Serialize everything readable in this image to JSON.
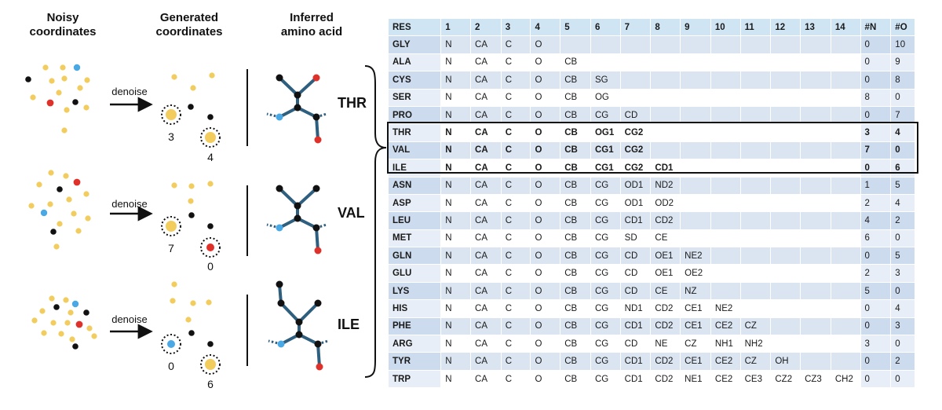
{
  "headers": {
    "noisy": "Noisy\ncoordinates",
    "generated": "Generated\ncoordinates",
    "inferred": "Inferred\namino acid"
  },
  "arrow_label": "denoise",
  "examples": [
    {
      "amino_acid": "THR",
      "n_count": "3",
      "o_count": "4"
    },
    {
      "amino_acid": "VAL",
      "n_count": "7",
      "o_count": "0"
    },
    {
      "amino_acid": "ILE",
      "n_count": "0",
      "o_count": "6"
    }
  ],
  "colors": {
    "yellow": "#f2cc5d",
    "black": "#111111",
    "red": "#e0302a",
    "blue": "#4aa9e4",
    "bond": "#2f5f7f",
    "row_shade": "#dbe5f1",
    "header": "#cfe5f4"
  },
  "table": {
    "header": [
      "RES",
      "1",
      "2",
      "3",
      "4",
      "5",
      "6",
      "7",
      "8",
      "9",
      "10",
      "11",
      "12",
      "13",
      "14",
      "#N",
      "#O"
    ],
    "highlight_rows": [
      "THR",
      "VAL",
      "ILE"
    ],
    "rows": [
      [
        "GLY",
        "N",
        "CA",
        "C",
        "O",
        "",
        "",
        "",
        "",
        "",
        "",
        "",
        "",
        "",
        "",
        "0",
        "10"
      ],
      [
        "ALA",
        "N",
        "CA",
        "C",
        "O",
        "CB",
        "",
        "",
        "",
        "",
        "",
        "",
        "",
        "",
        "",
        "0",
        "9"
      ],
      [
        "CYS",
        "N",
        "CA",
        "C",
        "O",
        "CB",
        "SG",
        "",
        "",
        "",
        "",
        "",
        "",
        "",
        "",
        "0",
        "8"
      ],
      [
        "SER",
        "N",
        "CA",
        "C",
        "O",
        "CB",
        "OG",
        "",
        "",
        "",
        "",
        "",
        "",
        "",
        "",
        "8",
        "0"
      ],
      [
        "PRO",
        "N",
        "CA",
        "C",
        "O",
        "CB",
        "CG",
        "CD",
        "",
        "",
        "",
        "",
        "",
        "",
        "",
        "0",
        "7"
      ],
      [
        "THR",
        "N",
        "CA",
        "C",
        "O",
        "CB",
        "OG1",
        "CG2",
        "",
        "",
        "",
        "",
        "",
        "",
        "",
        "3",
        "4"
      ],
      [
        "VAL",
        "N",
        "CA",
        "C",
        "O",
        "CB",
        "CG1",
        "CG2",
        "",
        "",
        "",
        "",
        "",
        "",
        "",
        "7",
        "0"
      ],
      [
        "ILE",
        "N",
        "CA",
        "C",
        "O",
        "CB",
        "CG1",
        "CG2",
        "CD1",
        "",
        "",
        "",
        "",
        "",
        "",
        "0",
        "6"
      ],
      [
        "ASN",
        "N",
        "CA",
        "C",
        "O",
        "CB",
        "CG",
        "OD1",
        "ND2",
        "",
        "",
        "",
        "",
        "",
        "",
        "1",
        "5"
      ],
      [
        "ASP",
        "N",
        "CA",
        "C",
        "O",
        "CB",
        "CG",
        "OD1",
        "OD2",
        "",
        "",
        "",
        "",
        "",
        "",
        "2",
        "4"
      ],
      [
        "LEU",
        "N",
        "CA",
        "C",
        "O",
        "CB",
        "CG",
        "CD1",
        "CD2",
        "",
        "",
        "",
        "",
        "",
        "",
        "4",
        "2"
      ],
      [
        "MET",
        "N",
        "CA",
        "C",
        "O",
        "CB",
        "CG",
        "SD",
        "CE",
        "",
        "",
        "",
        "",
        "",
        "",
        "6",
        "0"
      ],
      [
        "GLN",
        "N",
        "CA",
        "C",
        "O",
        "CB",
        "CG",
        "CD",
        "OE1",
        "NE2",
        "",
        "",
        "",
        "",
        "",
        "0",
        "5"
      ],
      [
        "GLU",
        "N",
        "CA",
        "C",
        "O",
        "CB",
        "CG",
        "CD",
        "OE1",
        "OE2",
        "",
        "",
        "",
        "",
        "",
        "2",
        "3"
      ],
      [
        "LYS",
        "N",
        "CA",
        "C",
        "O",
        "CB",
        "CG",
        "CD",
        "CE",
        "NZ",
        "",
        "",
        "",
        "",
        "",
        "5",
        "0"
      ],
      [
        "HIS",
        "N",
        "CA",
        "C",
        "O",
        "CB",
        "CG",
        "ND1",
        "CD2",
        "CE1",
        "NE2",
        "",
        "",
        "",
        "",
        "0",
        "4"
      ],
      [
        "PHE",
        "N",
        "CA",
        "C",
        "O",
        "CB",
        "CG",
        "CD1",
        "CD2",
        "CE1",
        "CE2",
        "CZ",
        "",
        "",
        "",
        "0",
        "3"
      ],
      [
        "ARG",
        "N",
        "CA",
        "C",
        "O",
        "CB",
        "CG",
        "CD",
        "NE",
        "CZ",
        "NH1",
        "NH2",
        "",
        "",
        "",
        "3",
        "0"
      ],
      [
        "TYR",
        "N",
        "CA",
        "C",
        "O",
        "CB",
        "CG",
        "CD1",
        "CD2",
        "CE1",
        "CE2",
        "CZ",
        "OH",
        "",
        "",
        "0",
        "2"
      ],
      [
        "TRP",
        "N",
        "CA",
        "C",
        "O",
        "CB",
        "CG",
        "CD1",
        "CD2",
        "NE1",
        "CE2",
        "CE3",
        "CZ2",
        "CZ3",
        "CH2",
        "0",
        "0"
      ]
    ]
  }
}
